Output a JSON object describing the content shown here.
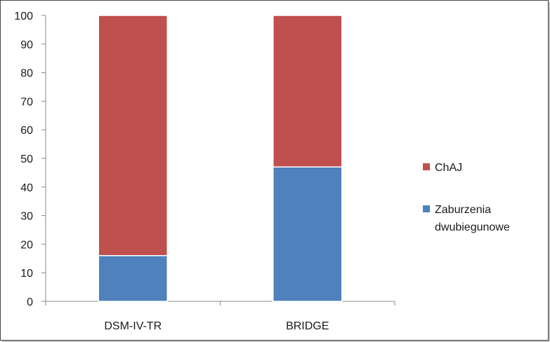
{
  "chart_data": {
    "type": "bar",
    "stacked": true,
    "categories": [
      "DSM-IV-TR",
      "BRIDGE"
    ],
    "series": [
      {
        "name": "Zaburzenia dwubiegunowe",
        "values": [
          16,
          47
        ],
        "color": "#4f81bd"
      },
      {
        "name": "ChAJ",
        "values": [
          84,
          53
        ],
        "color": "#c0504d"
      }
    ],
    "legend": {
      "placement": "right",
      "entries": [
        {
          "label_lines": [
            "ChAJ"
          ],
          "color": "#c0504d"
        },
        {
          "label_lines": [
            "Zaburzenia",
            "dwubiegunowe"
          ],
          "color": "#4f81bd"
        }
      ]
    },
    "y_ticks": [
      "0",
      "10",
      "20",
      "30",
      "40",
      "50",
      "60",
      "70",
      "80",
      "90",
      "100"
    ],
    "ylim": [
      0,
      100
    ],
    "grid": false
  }
}
